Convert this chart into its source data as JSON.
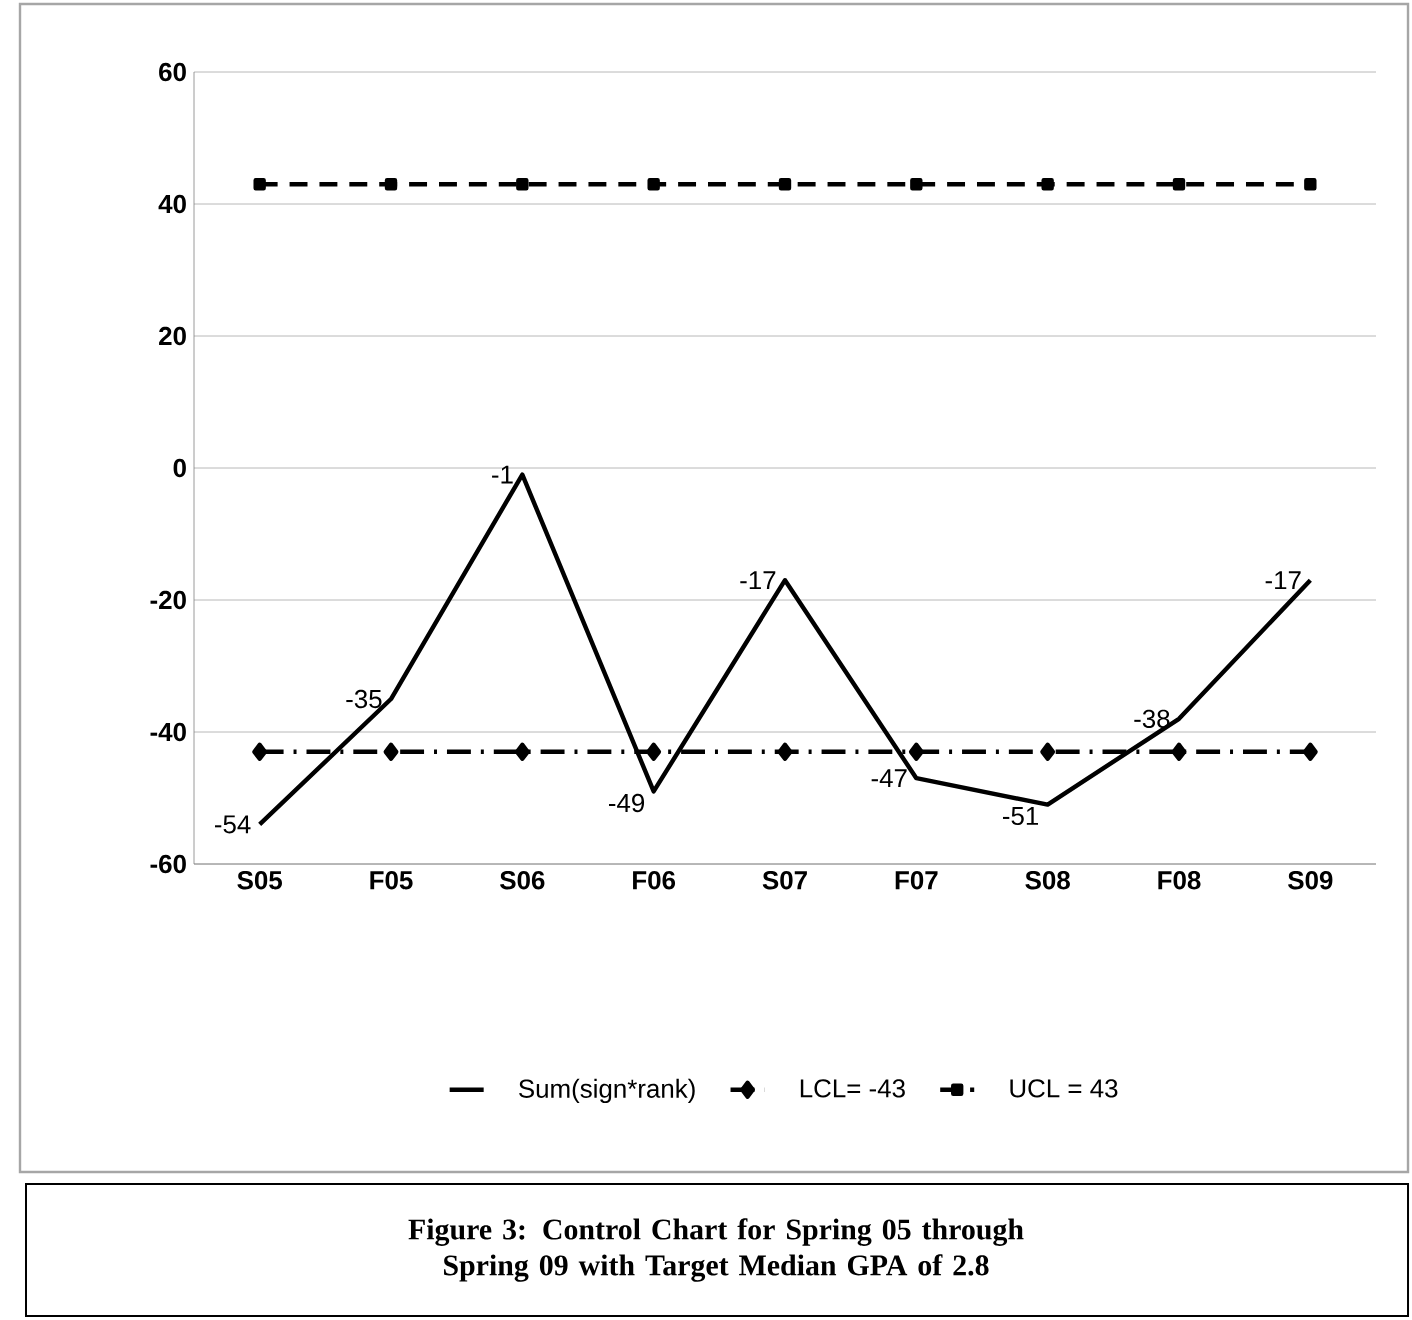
{
  "chart_data": {
    "type": "line",
    "title": "Figure 3:  Control Chart for Spring 05 through Spring 09 with Target Median GPA of 2.8",
    "categories": [
      "S05",
      "F05",
      "S06",
      "F06",
      "S07",
      "F07",
      "S08",
      "F08",
      "S09"
    ],
    "series": [
      {
        "name": "Sum(sign*rank)",
        "color": "#000000",
        "marker": "none",
        "line_style": "solid",
        "values": [
          -54,
          -35,
          -1,
          -49,
          -17,
          -47,
          -51,
          -38,
          -17
        ],
        "value_labels": [
          "-54",
          "-35",
          "-1",
          "-49",
          "-17",
          "-47",
          "-51",
          "-38",
          "-17"
        ]
      },
      {
        "name": "LCL= -43",
        "color": "#000000",
        "marker": "diamond",
        "line_style": "dashdot",
        "values": [
          -43,
          -43,
          -43,
          -43,
          -43,
          -43,
          -43,
          -43,
          -43
        ]
      },
      {
        "name": "UCL = 43",
        "color": "#000000",
        "marker": "square",
        "line_style": "dashed",
        "values": [
          43,
          43,
          43,
          43,
          43,
          43,
          43,
          43,
          43
        ]
      }
    ],
    "ylim": [
      -60,
      60
    ],
    "yticks": [
      -60,
      -40,
      -20,
      0,
      20,
      40,
      60
    ],
    "grid": "y",
    "legend": "bottom"
  }
}
